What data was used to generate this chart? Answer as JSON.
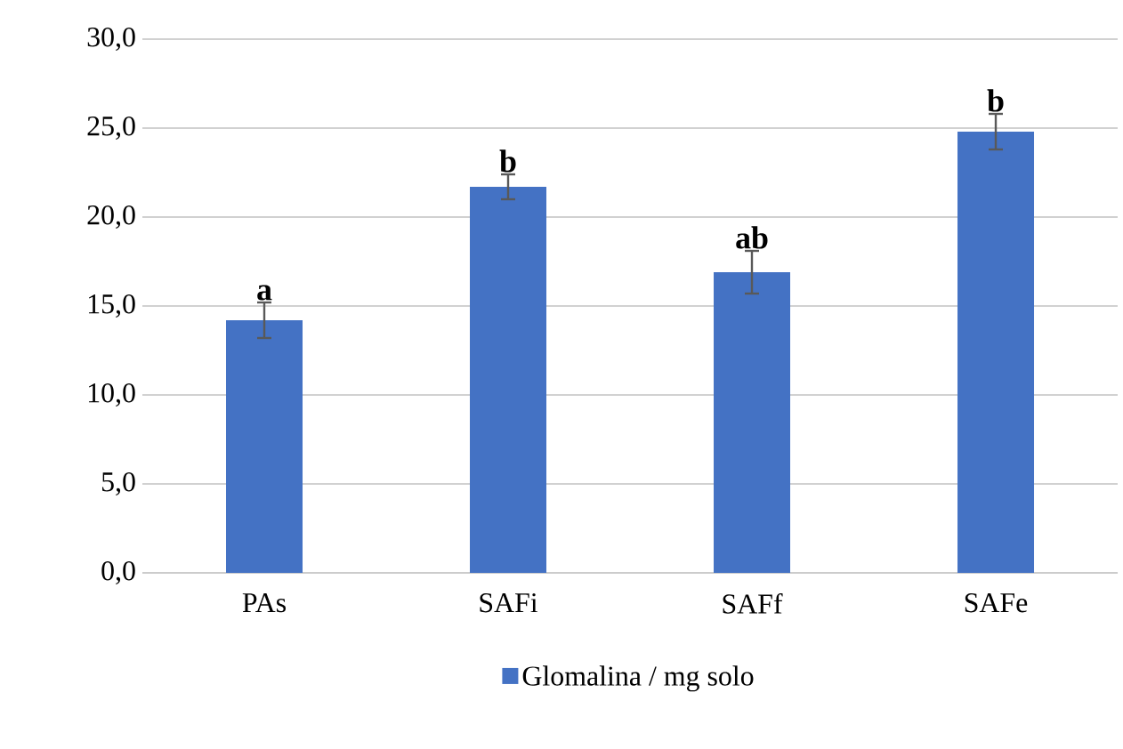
{
  "chart_data": {
    "type": "bar",
    "categories": [
      "PAs",
      "SAFi",
      "SAFf",
      "SAFe"
    ],
    "series": [
      {
        "name": "Glomalina / mg solo",
        "color": "#4472c4",
        "values": [
          14.2,
          21.7,
          16.9,
          24.8
        ],
        "errors": [
          1.0,
          0.7,
          1.2,
          1.0
        ]
      }
    ],
    "ylim": [
      0,
      30
    ],
    "yticks": [
      {
        "value": 0,
        "label": "0,0"
      },
      {
        "value": 5,
        "label": "5,0"
      },
      {
        "value": 10,
        "label": "10,0"
      },
      {
        "value": 15,
        "label": "15,0"
      },
      {
        "value": 20,
        "label": "20,0"
      },
      {
        "value": 25,
        "label": "25,0"
      },
      {
        "value": 30,
        "label": "30,0"
      }
    ],
    "grid": "y",
    "legend": "bottom",
    "annotations": [
      {
        "text": "a",
        "x": "PAs",
        "y": 15.2
      },
      {
        "text": "b",
        "x": "SAFi",
        "y": 22.4
      },
      {
        "text": "ab",
        "x": "SAFf",
        "y": 18.1
      },
      {
        "text": "b",
        "x": "SAFe",
        "y": 25.8
      }
    ]
  }
}
